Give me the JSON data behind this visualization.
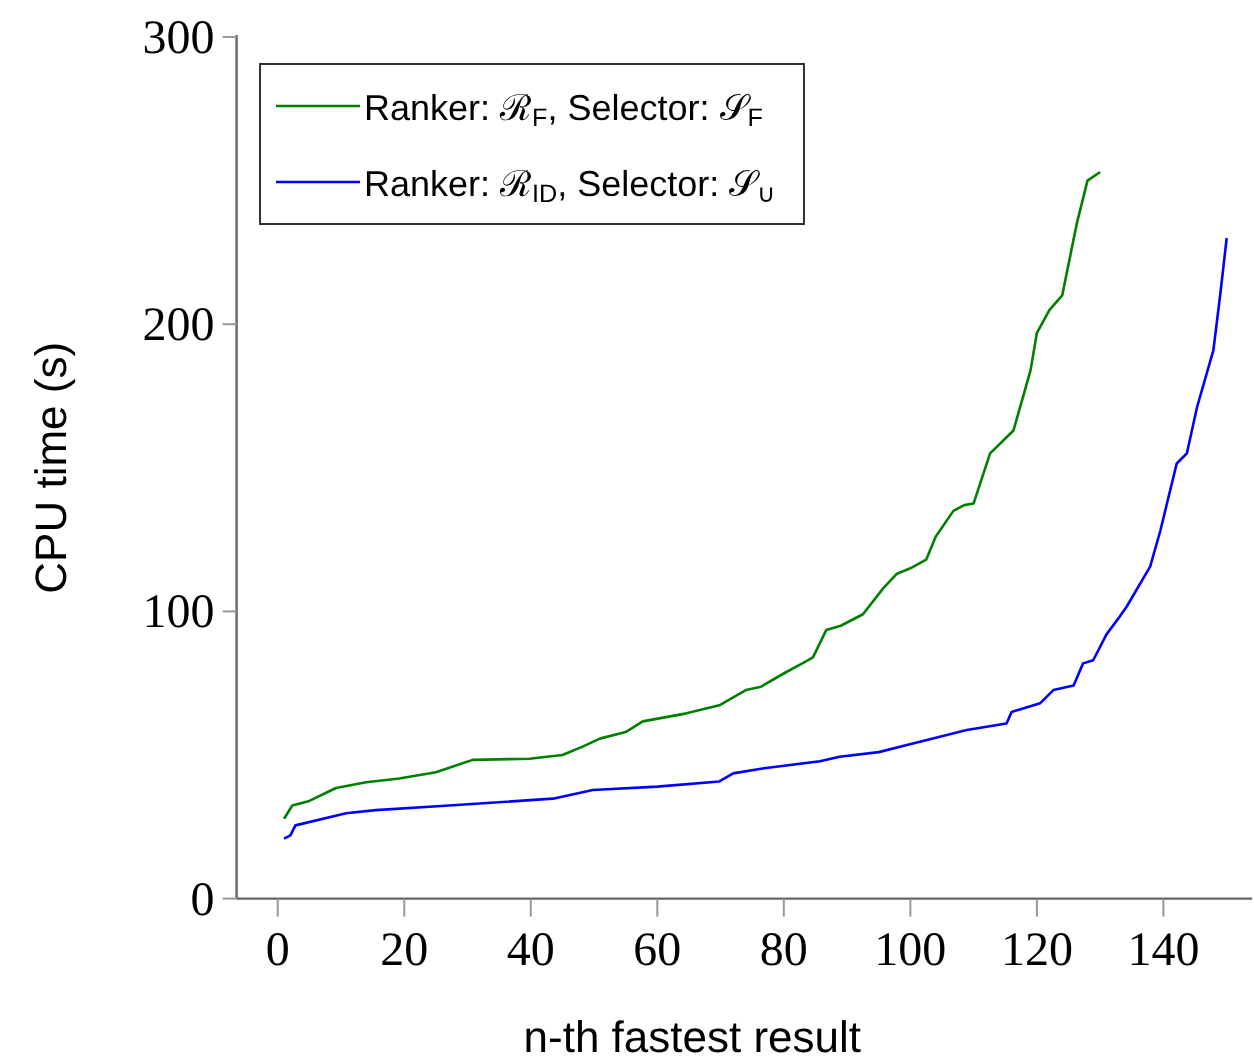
{
  "chart_data": {
    "type": "line",
    "xlabel": "n-th fastest result",
    "ylabel": "CPU time (s)",
    "xlim": [
      -6.5,
      154
    ],
    "ylim": [
      0,
      300
    ],
    "xticks": [
      0,
      20,
      40,
      60,
      80,
      100,
      120,
      140
    ],
    "yticks": [
      0,
      100,
      200,
      300
    ],
    "grid": false,
    "legend": "top left",
    "marker": "none",
    "line_style": "solid",
    "series": [
      {
        "name": "Ranker: ℛ$_{F}$, Selector: 𝒮$_{F}$",
        "color": "#008000",
        "x": [
          1,
          2.3,
          5,
          9.2,
          14,
          19.2,
          25,
          30.8,
          39.8,
          45,
          48.2,
          50.9,
          55,
          57.7,
          64.6,
          69.8,
          74,
          76.4,
          80.4,
          83,
          84.6,
          86.7,
          89,
          92.5,
          95.7,
          97.8,
          100,
          102.5,
          104,
          106.8,
          108.5,
          110,
          112.6,
          116.3,
          119,
          120,
          122,
          124,
          126.3,
          128,
          130
        ],
        "values": [
          27.8,
          32.4,
          34,
          38.5,
          40.5,
          41.8,
          44,
          48.3,
          48.7,
          50,
          52.9,
          55.7,
          58,
          61.7,
          64.5,
          67.3,
          72.6,
          73.8,
          78.9,
          82,
          84,
          93.5,
          95,
          99,
          108,
          113,
          115,
          118,
          126,
          135,
          137,
          137.6,
          155,
          163,
          184,
          197,
          205,
          210,
          235,
          250,
          253
        ]
      },
      {
        "name": "Ranker: ℛ$_{ID}$, Selector: 𝒮$_{∪}$",
        "color": "#0000ff",
        "x": [
          1,
          2,
          2.8,
          10.8,
          15.5,
          27.7,
          43.5,
          49.8,
          60,
          69.8,
          72,
          77.2,
          85.7,
          88.8,
          95,
          100.4,
          108.9,
          115.2,
          116,
          120.5,
          122.6,
          125.8,
          127.3,
          128.9,
          131,
          133.1,
          134.2,
          137.9,
          139.5,
          142.1,
          143.7,
          145.3,
          147.9,
          149,
          150
        ],
        "values": [
          20.9,
          22,
          25.5,
          29.7,
          30.8,
          32.5,
          34.8,
          37.8,
          39,
          40.8,
          43.6,
          45.5,
          47.8,
          49.4,
          51,
          54,
          58.7,
          61,
          65,
          68,
          72.6,
          74.2,
          81.9,
          83,
          92,
          98.2,
          101.7,
          115.6,
          128,
          151.5,
          155,
          171,
          191,
          210.7,
          230
        ]
      }
    ]
  }
}
